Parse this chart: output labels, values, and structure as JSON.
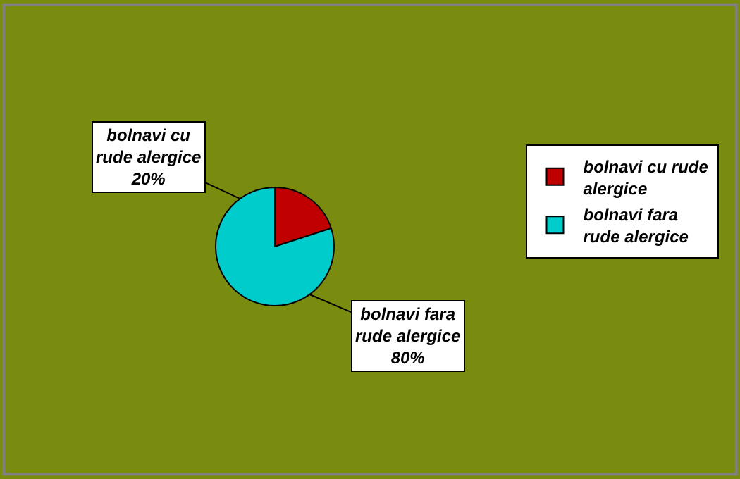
{
  "chart_data": {
    "type": "pie",
    "categories": [
      "bolnavi cu rude alergice",
      "bolnavi fara rude alergice"
    ],
    "values": [
      20,
      80
    ],
    "colors": [
      "#c00000",
      "#00cccc"
    ],
    "value_labels": [
      "20%",
      "80%"
    ],
    "legend": "right"
  }
}
